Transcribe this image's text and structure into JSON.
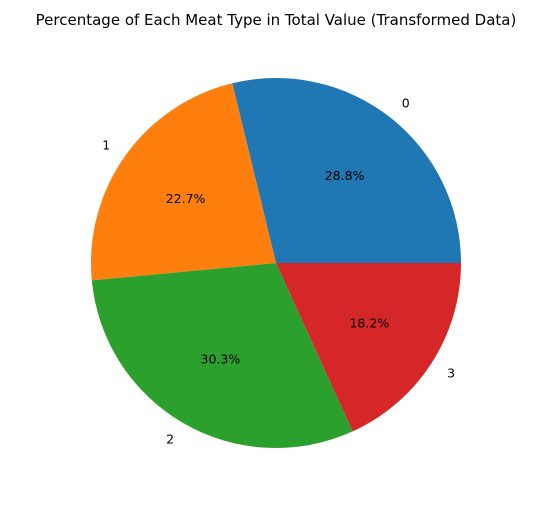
{
  "chart_data": {
    "type": "pie",
    "title": "Percentage of Each Meat Type in Total Value (Transformed Data)",
    "start_angle": 0,
    "direction": "counterclockwise",
    "slices": [
      {
        "label": "0",
        "percent": 28.8,
        "pct_label": "28.8%",
        "color": "#1f77b4"
      },
      {
        "label": "1",
        "percent": 22.7,
        "pct_label": "22.7%",
        "color": "#ff7f0e"
      },
      {
        "label": "2",
        "percent": 30.3,
        "pct_label": "30.3%",
        "color": "#2ca02c"
      },
      {
        "label": "3",
        "percent": 18.2,
        "pct_label": "18.2%",
        "color": "#d62728"
      }
    ]
  }
}
